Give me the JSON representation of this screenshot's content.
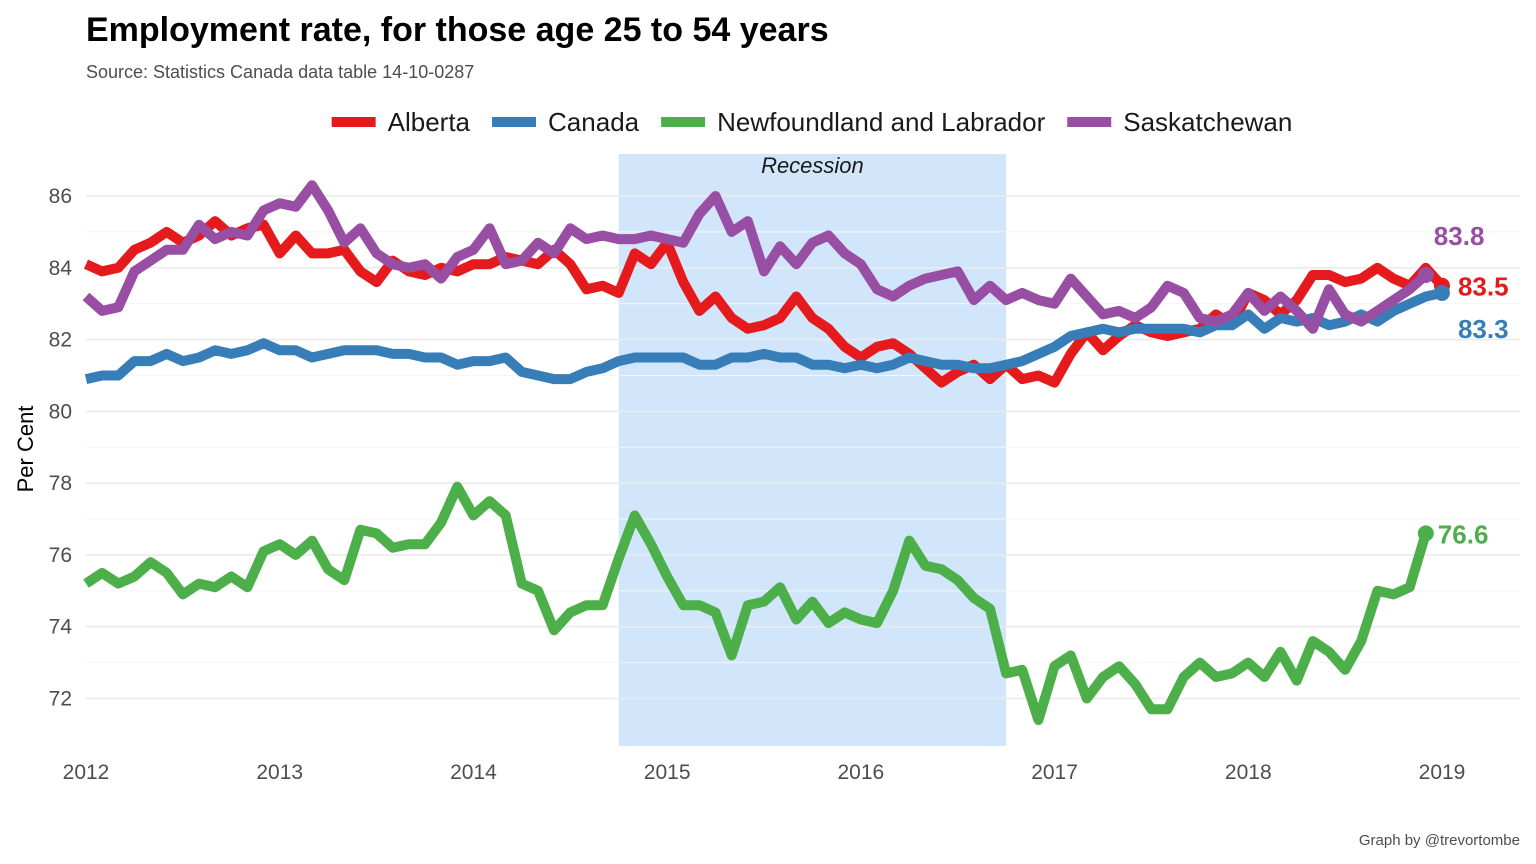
{
  "chart_data": {
    "type": "line",
    "title": "Employment rate, for those age 25 to 54 years",
    "subtitle": "Source: Statistics Canada data table 14-10-0287",
    "ylabel": "Per Cent",
    "xlabel": "",
    "caption": "Graph by @trevortombe",
    "xlim": [
      2012,
      2019.45
    ],
    "ylim": [
      70.6,
      87.2
    ],
    "xticks": [
      "2012",
      "2013",
      "2014",
      "2015",
      "2016",
      "2017",
      "2018",
      "2019"
    ],
    "yticks": [
      "72",
      "74",
      "76",
      "78",
      "80",
      "82",
      "84",
      "86"
    ],
    "grid": true,
    "legend_position": "top",
    "annotation": {
      "label": "Recession",
      "x_start": 2014.75,
      "x_end": 2016.75
    },
    "series": [
      {
        "name": "Alberta",
        "color": "#e41a1c",
        "end_label": "83.5",
        "values": [
          84.1,
          83.9,
          84.0,
          84.5,
          84.7,
          85.0,
          84.7,
          84.9,
          85.3,
          84.9,
          85.1,
          85.2,
          84.4,
          84.9,
          84.4,
          84.4,
          84.5,
          83.9,
          83.6,
          84.2,
          83.9,
          83.8,
          84.0,
          83.9,
          84.1,
          84.1,
          84.3,
          84.2,
          84.1,
          84.5,
          84.1,
          83.4,
          83.5,
          83.3,
          84.4,
          84.1,
          84.7,
          83.6,
          82.8,
          83.2,
          82.6,
          82.3,
          82.4,
          82.6,
          83.2,
          82.6,
          82.3,
          81.8,
          81.5,
          81.8,
          81.9,
          81.6,
          81.2,
          80.8,
          81.1,
          81.3,
          80.9,
          81.3,
          80.9,
          81.0,
          80.8,
          81.6,
          82.2,
          81.7,
          82.1,
          82.4,
          82.2,
          82.1,
          82.2,
          82.3,
          82.7,
          82.4,
          83.3,
          83.1,
          82.7,
          83.1,
          83.8,
          83.8,
          83.6,
          83.7,
          84.0,
          83.7,
          83.5,
          84.0,
          83.5
        ],
        "x_start": 2012.0,
        "x_step": 0.08333
      },
      {
        "name": "Canada",
        "color": "#377eb8",
        "end_label": "83.3",
        "values": [
          80.9,
          81.0,
          81.0,
          81.4,
          81.4,
          81.6,
          81.4,
          81.5,
          81.7,
          81.6,
          81.7,
          81.9,
          81.7,
          81.7,
          81.5,
          81.6,
          81.7,
          81.7,
          81.7,
          81.6,
          81.6,
          81.5,
          81.5,
          81.3,
          81.4,
          81.4,
          81.5,
          81.1,
          81.0,
          80.9,
          80.9,
          81.1,
          81.2,
          81.4,
          81.5,
          81.5,
          81.5,
          81.5,
          81.3,
          81.3,
          81.5,
          81.5,
          81.6,
          81.5,
          81.5,
          81.3,
          81.3,
          81.2,
          81.3,
          81.2,
          81.3,
          81.5,
          81.4,
          81.3,
          81.3,
          81.2,
          81.2,
          81.3,
          81.4,
          81.6,
          81.8,
          82.1,
          82.2,
          82.3,
          82.2,
          82.3,
          82.3,
          82.3,
          82.3,
          82.2,
          82.4,
          82.4,
          82.7,
          82.3,
          82.6,
          82.5,
          82.6,
          82.4,
          82.5,
          82.7,
          82.5,
          82.8,
          83.0,
          83.2,
          83.3
        ],
        "x_start": 2012.0,
        "x_step": 0.08333
      },
      {
        "name": "Newfoundland and Labrador",
        "color": "#4daf4a",
        "end_label": "76.6",
        "values": [
          75.2,
          75.5,
          75.2,
          75.4,
          75.8,
          75.5,
          74.9,
          75.2,
          75.1,
          75.4,
          75.1,
          76.1,
          76.3,
          76.0,
          76.4,
          75.6,
          75.3,
          76.7,
          76.6,
          76.2,
          76.3,
          76.3,
          76.9,
          77.9,
          77.1,
          77.5,
          77.1,
          75.2,
          75.0,
          73.9,
          74.4,
          74.6,
          74.6,
          75.9,
          77.1,
          76.3,
          75.4,
          74.6,
          74.6,
          74.4,
          73.2,
          74.6,
          74.7,
          75.1,
          74.2,
          74.7,
          74.1,
          74.4,
          74.2,
          74.1,
          75.0,
          76.4,
          75.7,
          75.6,
          75.3,
          74.8,
          74.5,
          72.7,
          72.8,
          71.4,
          72.9,
          73.2,
          72.0,
          72.6,
          72.9,
          72.4,
          71.7,
          71.7,
          72.6,
          73.0,
          72.6,
          72.7,
          73.0,
          72.6,
          73.3,
          72.5,
          73.6,
          73.3,
          72.8,
          73.6,
          75.0,
          74.9,
          75.1,
          76.6
        ],
        "x_start": 2012.0,
        "x_step": 0.08333
      },
      {
        "name": "Saskatchewan",
        "color": "#984ea3",
        "end_label": "83.8",
        "values": [
          83.2,
          82.8,
          82.9,
          83.9,
          84.2,
          84.5,
          84.5,
          85.2,
          84.8,
          85.0,
          84.9,
          85.6,
          85.8,
          85.7,
          86.3,
          85.6,
          84.7,
          85.1,
          84.4,
          84.1,
          84.0,
          84.1,
          83.7,
          84.3,
          84.5,
          85.1,
          84.1,
          84.2,
          84.7,
          84.4,
          85.1,
          84.8,
          84.9,
          84.8,
          84.8,
          84.9,
          84.8,
          84.7,
          85.5,
          86.0,
          85.0,
          85.3,
          83.9,
          84.6,
          84.1,
          84.7,
          84.9,
          84.4,
          84.1,
          83.4,
          83.2,
          83.5,
          83.7,
          83.8,
          83.9,
          83.1,
          83.5,
          83.1,
          83.3,
          83.1,
          83.0,
          83.7,
          83.2,
          82.7,
          82.8,
          82.6,
          82.9,
          83.5,
          83.3,
          82.6,
          82.5,
          82.7,
          83.3,
          82.8,
          83.2,
          82.8,
          82.3,
          83.4,
          82.7,
          82.5,
          82.8,
          83.1,
          83.4,
          83.8
        ],
        "x_start": 2012.0,
        "x_step": 0.08333
      }
    ]
  }
}
